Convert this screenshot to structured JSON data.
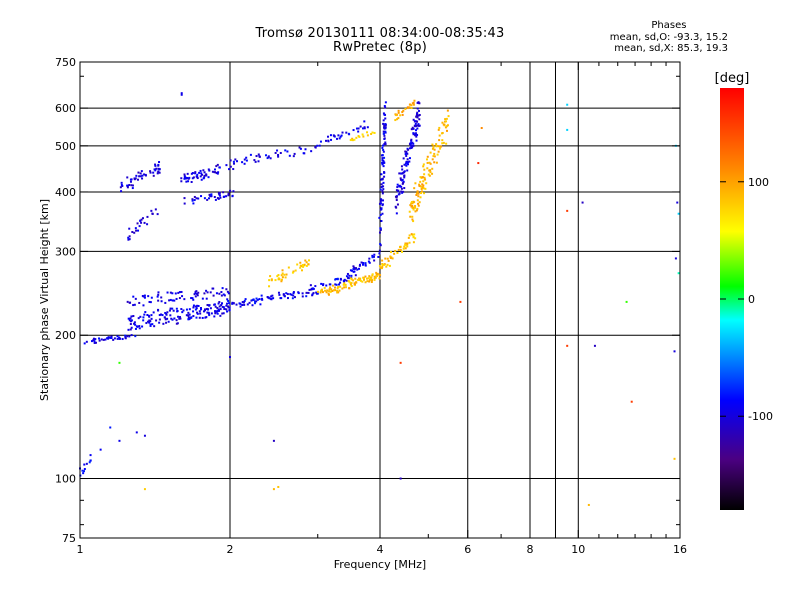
{
  "chart_data": {
    "type": "scatter",
    "title": "Tromsø 20130111 08:34:00-08:35:43",
    "subtitle": "RwPretec (8p)",
    "xlabel": "Frequency [MHz]",
    "ylabel": "Stationary phase Virtual Height [km]",
    "x_scale": "log",
    "y_scale": "log",
    "xlim": [
      1,
      16
    ],
    "ylim": [
      75,
      750
    ],
    "x_ticks": [
      {
        "value": 1,
        "label": "1"
      },
      {
        "value": 2,
        "label": "2"
      },
      {
        "value": 4,
        "label": "4"
      },
      {
        "value": 6,
        "label": "6"
      },
      {
        "value": 8,
        "label": "8"
      },
      {
        "value": 10,
        "label": "10"
      },
      {
        "value": 16,
        "label": "16"
      }
    ],
    "y_ticks": [
      {
        "value": 75,
        "label": "75"
      },
      {
        "value": 100,
        "label": "100"
      },
      {
        "value": 200,
        "label": "200"
      },
      {
        "value": 300,
        "label": "300"
      },
      {
        "value": 400,
        "label": "400"
      },
      {
        "value": 500,
        "label": "500"
      },
      {
        "value": 600,
        "label": "600"
      },
      {
        "value": 750,
        "label": "750"
      }
    ],
    "grid_x": [
      2,
      4,
      6,
      8,
      9,
      10,
      16
    ],
    "grid_y": [
      100,
      200,
      300,
      400,
      500,
      600
    ],
    "grid": true,
    "colorbar": {
      "label": "[deg]",
      "min": -180,
      "max": 180,
      "ticks": [
        {
          "value": 100,
          "label": "100"
        },
        {
          "value": 0,
          "label": "0"
        },
        {
          "value": -100,
          "label": "-100"
        }
      ]
    },
    "stats": {
      "header": "Phases",
      "line_o": "mean, sd,O: -93.3, 15.2",
      "line_x": "mean, sd,X:  85.3, 19.3"
    },
    "segments": [
      {
        "x0": 1.0,
        "x1": 1.3,
        "y0": 193,
        "y1": 200,
        "phase": -95,
        "n": 40,
        "spread": 0.02
      },
      {
        "x0": 1.25,
        "x1": 2.0,
        "y0": 210,
        "y1": 232,
        "phase": -95,
        "n": 170,
        "spread": 0.07
      },
      {
        "x0": 1.25,
        "x1": 2.0,
        "y0": 235,
        "y1": 250,
        "phase": -98,
        "n": 70,
        "spread": 0.05
      },
      {
        "x0": 2.0,
        "x1": 3.0,
        "y0": 230,
        "y1": 250,
        "phase": -92,
        "n": 80,
        "spread": 0.03
      },
      {
        "x0": 2.9,
        "x1": 3.6,
        "y0": 250,
        "y1": 268,
        "phase": -92,
        "n": 30,
        "spread": 0.03
      },
      {
        "x0": 3.5,
        "x1": 4.0,
        "y0": 270,
        "y1": 300,
        "phase": -95,
        "n": 30,
        "spread": 0.03
      },
      {
        "x0": 4.0,
        "x1": 4.1,
        "y0": 300,
        "y1": 640,
        "phase": -95,
        "n": 90,
        "spread": 0.03
      },
      {
        "x0": 4.3,
        "x1": 4.8,
        "y0": 350,
        "y1": 630,
        "phase": -100,
        "n": 120,
        "spread": 0.05
      },
      {
        "x0": 3.0,
        "x1": 3.8,
        "y0": 500,
        "y1": 560,
        "phase": -95,
        "n": 30,
        "spread": 0.03
      },
      {
        "x0": 2.0,
        "x1": 3.0,
        "y0": 455,
        "y1": 500,
        "phase": -95,
        "n": 40,
        "spread": 0.03
      },
      {
        "x0": 1.2,
        "x1": 1.45,
        "y0": 400,
        "y1": 460,
        "phase": -100,
        "n": 50,
        "spread": 0.05
      },
      {
        "x0": 1.6,
        "x1": 2.05,
        "y0": 420,
        "y1": 460,
        "phase": -98,
        "n": 60,
        "spread": 0.04
      },
      {
        "x0": 1.6,
        "x1": 2.05,
        "y0": 380,
        "y1": 400,
        "phase": -98,
        "n": 40,
        "spread": 0.03
      },
      {
        "x0": 1.25,
        "x1": 1.45,
        "y0": 320,
        "y1": 380,
        "phase": -100,
        "n": 25,
        "spread": 0.04
      },
      {
        "x0": 3.0,
        "x1": 4.0,
        "y0": 242,
        "y1": 270,
        "phase": 88,
        "n": 100,
        "spread": 0.03
      },
      {
        "x0": 4.0,
        "x1": 4.7,
        "y0": 272,
        "y1": 330,
        "phase": 85,
        "n": 50,
        "spread": 0.03
      },
      {
        "x0": 4.6,
        "x1": 5.5,
        "y0": 340,
        "y1": 600,
        "phase": 90,
        "n": 120,
        "spread": 0.05
      },
      {
        "x0": 4.2,
        "x1": 4.7,
        "y0": 560,
        "y1": 620,
        "phase": 95,
        "n": 25,
        "spread": 0.03
      },
      {
        "x0": 2.4,
        "x1": 2.9,
        "y0": 255,
        "y1": 290,
        "phase": 85,
        "n": 40,
        "spread": 0.03
      },
      {
        "x0": 3.5,
        "x1": 3.9,
        "y0": 510,
        "y1": 540,
        "phase": 80,
        "n": 15,
        "spread": 0.02
      },
      {
        "x0": 1.0,
        "x1": 1.05,
        "y0": 100,
        "y1": 110,
        "phase": -90,
        "n": 10,
        "spread": 0.02
      }
    ],
    "points": [
      {
        "x": 1.6,
        "y": 640,
        "phase": -95
      },
      {
        "x": 1.6,
        "y": 645,
        "phase": -95
      },
      {
        "x": 1.1,
        "y": 115,
        "phase": -90
      },
      {
        "x": 1.2,
        "y": 120,
        "phase": -95
      },
      {
        "x": 1.3,
        "y": 125,
        "phase": -95
      },
      {
        "x": 1.35,
        "y": 123,
        "phase": -100
      },
      {
        "x": 1.15,
        "y": 128,
        "phase": -80
      },
      {
        "x": 1.0,
        "y": 105,
        "phase": -95
      },
      {
        "x": 1.02,
        "y": 107,
        "phase": -90
      },
      {
        "x": 1.05,
        "y": 112,
        "phase": -90
      },
      {
        "x": 1.2,
        "y": 175,
        "phase": 20
      },
      {
        "x": 1.35,
        "y": 95,
        "phase": 80
      },
      {
        "x": 2.45,
        "y": 120,
        "phase": -110
      },
      {
        "x": 2.45,
        "y": 95,
        "phase": 90
      },
      {
        "x": 2.5,
        "y": 96,
        "phase": 85
      },
      {
        "x": 2.0,
        "y": 180,
        "phase": -100
      },
      {
        "x": 4.4,
        "y": 100,
        "phase": -110
      },
      {
        "x": 4.4,
        "y": 175,
        "phase": 150
      },
      {
        "x": 5.8,
        "y": 235,
        "phase": 150
      },
      {
        "x": 6.3,
        "y": 460,
        "phase": 160
      },
      {
        "x": 6.4,
        "y": 545,
        "phase": 110
      },
      {
        "x": 9.5,
        "y": 610,
        "phase": -30
      },
      {
        "x": 9.5,
        "y": 540,
        "phase": -30
      },
      {
        "x": 9.5,
        "y": 365,
        "phase": 150
      },
      {
        "x": 9.5,
        "y": 190,
        "phase": 150
      },
      {
        "x": 10.2,
        "y": 380,
        "phase": -110
      },
      {
        "x": 10.5,
        "y": 88,
        "phase": 90
      },
      {
        "x": 10.8,
        "y": 190,
        "phase": -110
      },
      {
        "x": 12.5,
        "y": 235,
        "phase": 20
      },
      {
        "x": 12.8,
        "y": 145,
        "phase": 150
      },
      {
        "x": 15.6,
        "y": 110,
        "phase": 85
      },
      {
        "x": 15.6,
        "y": 185,
        "phase": -100
      },
      {
        "x": 15.7,
        "y": 290,
        "phase": -100
      },
      {
        "x": 15.8,
        "y": 380,
        "phase": -100
      },
      {
        "x": 15.9,
        "y": 360,
        "phase": -30
      },
      {
        "x": 15.7,
        "y": 500,
        "phase": -30
      },
      {
        "x": 15.9,
        "y": 270,
        "phase": -10
      }
    ]
  }
}
